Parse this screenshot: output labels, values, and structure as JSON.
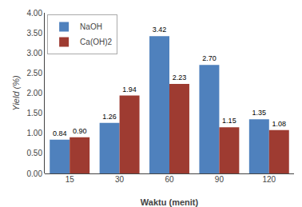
{
  "chart_data": {
    "type": "bar",
    "categories": [
      "15",
      "30",
      "60",
      "90",
      "120"
    ],
    "series": [
      {
        "name": "NaOH",
        "color": "#4F81BD",
        "values": [
          0.84,
          1.26,
          3.42,
          2.7,
          1.35
        ],
        "value_labels": [
          "0.84",
          "1.26",
          "3.42",
          "2.70",
          "1.35"
        ]
      },
      {
        "name": "Ca(OH)2",
        "color": "#9E3B31",
        "values": [
          0.9,
          1.94,
          2.23,
          1.15,
          1.08
        ],
        "value_labels": [
          "0.90",
          "1.94",
          "2.23",
          "1.15",
          "1.08"
        ]
      }
    ],
    "xlabel": "Waktu (menit)",
    "ylabel": "Yield (%)",
    "ylim": [
      0.0,
      4.0
    ],
    "yticks": [
      {
        "value": 0.0,
        "label": "0.00"
      },
      {
        "value": 0.5,
        "label": "0.50"
      },
      {
        "value": 1.0,
        "label": "1.00"
      },
      {
        "value": 1.5,
        "label": "1.50"
      },
      {
        "value": 2.0,
        "label": "2.00"
      },
      {
        "value": 2.5,
        "label": "2.50"
      },
      {
        "value": 3.0,
        "label": "3.00"
      },
      {
        "value": 3.5,
        "label": "3.50"
      },
      {
        "value": 4.0,
        "label": "4.00"
      }
    ],
    "grid": false,
    "legend": "upper left",
    "data_labels": true
  }
}
